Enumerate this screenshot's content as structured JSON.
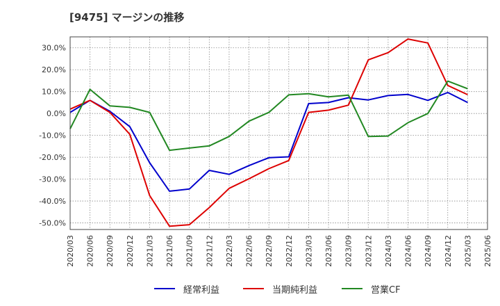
{
  "chart_data": {
    "type": "line",
    "title": "[9475]  マージンの推移",
    "xlabel": "",
    "ylabel": "",
    "ylim": [
      -53,
      35
    ],
    "yticks": [
      30,
      20,
      10,
      0,
      -10,
      -20,
      -30,
      -40,
      -50
    ],
    "ytick_labels": [
      "30.0%",
      "20.0%",
      "10.0%",
      "0.0%",
      "-10.0%",
      "-20.0%",
      "-30.0%",
      "-40.0%",
      "-50.0%"
    ],
    "categories": [
      "2020/03",
      "2020/06",
      "2020/09",
      "2020/12",
      "2021/03",
      "2021/06",
      "2021/09",
      "2021/12",
      "2022/03",
      "2022/06",
      "2022/09",
      "2022/12",
      "2023/03",
      "2023/06",
      "2023/09",
      "2023/12",
      "2024/03",
      "2024/06",
      "2024/09",
      "2024/12",
      "2025/03",
      "2025/06"
    ],
    "grid": true,
    "legend_position": "bottom",
    "series": [
      {
        "name": "経常利益",
        "color": "#0000cc",
        "values": [
          0.5,
          6,
          1,
          -6,
          -22.5,
          -35.5,
          -34.5,
          -26,
          -27.8,
          -23.8,
          -20.2,
          -19.8,
          4.5,
          5,
          7.2,
          6.2,
          8.2,
          8.7,
          6,
          9.6,
          5,
          null
        ]
      },
      {
        "name": "当期純利益",
        "color": "#dd0000",
        "values": [
          2,
          6,
          0.5,
          -9.5,
          -37.5,
          -51.5,
          -50.8,
          -43,
          -34.2,
          -29.8,
          -25.2,
          -21.5,
          0.5,
          1.5,
          3.8,
          24.5,
          27.8,
          34,
          32.2,
          12.8,
          8.6,
          null
        ]
      },
      {
        "name": "営業CF",
        "color": "#228822",
        "values": [
          -7,
          11,
          3.5,
          2.8,
          0.5,
          -16.8,
          -15.8,
          -14.8,
          -10.5,
          -3.5,
          0.5,
          8.5,
          9,
          7.6,
          8.4,
          -10.5,
          -10.3,
          -4.2,
          0,
          14.8,
          11.3,
          null
        ]
      }
    ]
  }
}
